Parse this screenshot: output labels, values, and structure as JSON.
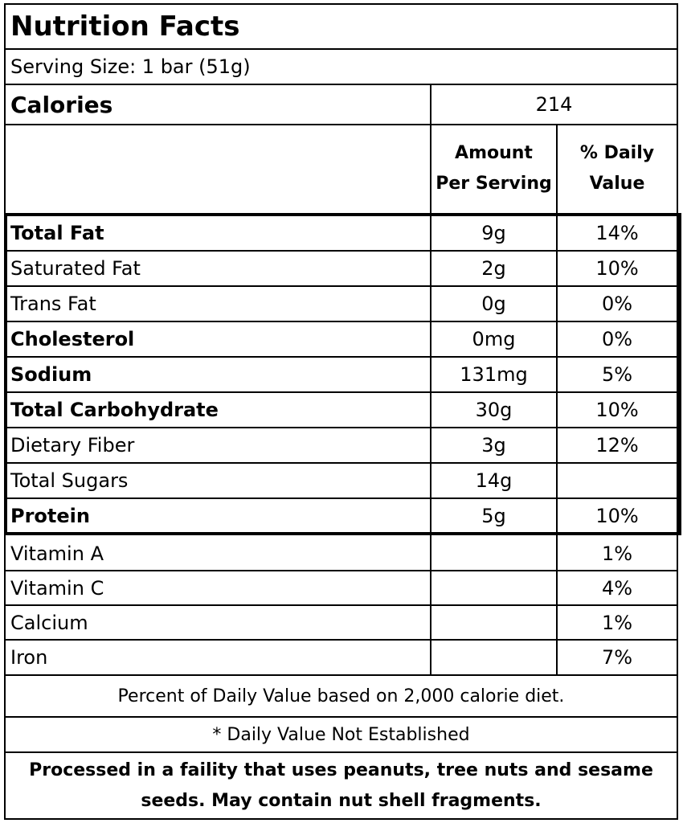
{
  "title": "Nutrition Facts",
  "serving_size": "Serving Size: 1 bar (51g)",
  "calories": {
    "label": "Calories",
    "value": "214"
  },
  "column_headers": {
    "amount_line1": "Amount",
    "amount_line2": "Per Serving",
    "dv_line1": "% Daily",
    "dv_line2": "Value"
  },
  "nutrients": [
    {
      "name": "Total Fat",
      "amount": "9g",
      "dv": "14%",
      "bold": true
    },
    {
      "name": "Saturated Fat",
      "amount": "2g",
      "dv": "10%",
      "bold": false
    },
    {
      "name": "Trans Fat",
      "amount": "0g",
      "dv": "0%",
      "bold": false
    },
    {
      "name": "Cholesterol",
      "amount": "0mg",
      "dv": "0%",
      "bold": true
    },
    {
      "name": "Sodium",
      "amount": "131mg",
      "dv": "5%",
      "bold": true
    },
    {
      "name": "Total Carbohydrate",
      "amount": "30g",
      "dv": "10%",
      "bold": true
    },
    {
      "name": "Dietary Fiber",
      "amount": "3g",
      "dv": "12%",
      "bold": false
    },
    {
      "name": "Total Sugars",
      "amount": "14g",
      "dv": "",
      "bold": false
    },
    {
      "name": "Protein",
      "amount": "5g",
      "dv": "10%",
      "bold": true
    }
  ],
  "vitamins": [
    {
      "name": "Vitamin A",
      "amount": "",
      "dv": "1%"
    },
    {
      "name": "Vitamin C",
      "amount": "",
      "dv": "4%"
    },
    {
      "name": "Calcium",
      "amount": "",
      "dv": "1%"
    },
    {
      "name": "Iron",
      "amount": "",
      "dv": "7%"
    }
  ],
  "footnote_dv": "Percent of Daily Value based on 2,000 calorie diet.",
  "footnote_established": "* Daily Value Not Established",
  "allergen_line1": "Processed in a faility that uses peanuts, tree nuts and sesame",
  "allergen_line2": "seeds.  May contain nut shell fragments."
}
